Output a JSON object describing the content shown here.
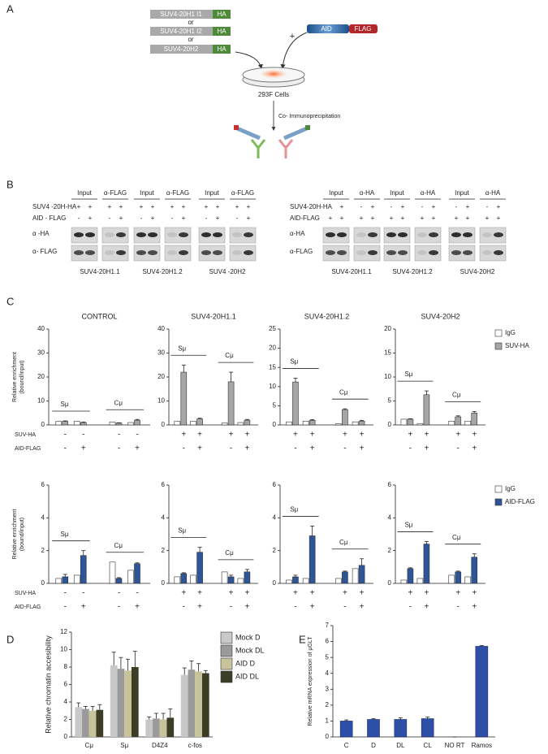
{
  "panel_labels": [
    "A",
    "B",
    "C",
    "D",
    "E"
  ],
  "panel_a": {
    "constructs": [
      {
        "name": "SUV4-20H1 I1",
        "tag": "HA"
      },
      {
        "name": "SUV4-20H1 I2",
        "tag": "HA"
      },
      {
        "name": "SUV4-20H2",
        "tag": "HA"
      }
    ],
    "or": [
      "or",
      "or"
    ],
    "plus": "+",
    "aid": "AID",
    "flag": "FLAG",
    "cells": "293F Cells",
    "step": "Co- Immunoprecipitation"
  },
  "panel_b": [
    {
      "headers": [
        "Input",
        "α-FLAG"
      ],
      "row_labels": [
        "SUV4 -20H-HA",
        "AID - FLAG",
        "α -HA",
        "α- FLAG"
      ],
      "signs": [
        [
          "+",
          "+",
          "+",
          "+"
        ],
        [
          "-",
          "+",
          "-",
          "+"
        ]
      ],
      "groups": [
        "SUV4-20H1.1",
        "SUV4-20H1.2",
        "SUV4 -20H2"
      ]
    },
    {
      "headers": [
        "Input",
        "α-HA"
      ],
      "row_labels": [
        "SUV4-20H-HA",
        "AID-FLAG",
        "α-HA",
        "α-FLAG"
      ],
      "signs": [
        [
          "-",
          "+",
          "-",
          "+"
        ],
        [
          "+",
          "+",
          "+",
          "+"
        ]
      ],
      "groups": [
        "SUV4-20H1.1",
        "SUV4-20H1.2",
        "SUV4-20H2"
      ]
    }
  ],
  "chart_data": [
    {
      "type": "bar",
      "title": "CONTROL",
      "ylabel": [
        "Relative enrichment",
        "(bound/input)"
      ],
      "row_names": [
        "SUV-HA",
        "AID-FLAG"
      ],
      "ylim": [
        0,
        40
      ],
      "yticks": [
        0,
        10,
        20,
        30,
        40
      ],
      "groups": [
        "Sμ",
        "Cμ"
      ],
      "signs": [
        [
          "-",
          "-",
          "-",
          "-"
        ],
        [
          "-",
          "+",
          "-",
          "+"
        ]
      ],
      "series": [
        {
          "color": "#ffffff",
          "values": [
            1.5,
            1.5,
            1.2,
            1.0
          ]
        },
        {
          "color": "#a6a6a6",
          "values": [
            1.5,
            1.0,
            0.8,
            2.0
          ],
          "errors": [
            0.2,
            0.2,
            0.1,
            0.3
          ]
        }
      ]
    },
    {
      "type": "bar",
      "title": "SUV4-20H1.1",
      "ylim": [
        0,
        40
      ],
      "yticks": [
        0,
        10,
        20,
        30,
        40
      ],
      "groups": [
        "Sμ",
        "Cμ"
      ],
      "signs": [
        [
          "+",
          "+",
          "+",
          "+"
        ],
        [
          "-",
          "+",
          "-",
          "+"
        ]
      ],
      "series": [
        {
          "color": "#ffffff",
          "values": [
            1.5,
            1.5,
            0.8,
            1.0
          ]
        },
        {
          "color": "#a6a6a6",
          "values": [
            22,
            2.5,
            18,
            2.0
          ],
          "errors": [
            3,
            0.3,
            4,
            0.3
          ]
        }
      ]
    },
    {
      "type": "bar",
      "title": "SUV4-20H1.2",
      "ylim": [
        0,
        25
      ],
      "yticks": [
        0,
        5,
        10,
        15,
        20,
        25
      ],
      "groups": [
        "Sμ",
        "Cμ"
      ],
      "signs": [
        [
          "+",
          "+",
          "+",
          "+"
        ],
        [
          "-",
          "+",
          "-",
          "+"
        ]
      ],
      "series": [
        {
          "color": "#ffffff",
          "values": [
            0.8,
            1.0,
            0.3,
            0.8
          ]
        },
        {
          "color": "#a6a6a6",
          "values": [
            11.2,
            1.2,
            4.0,
            1.0
          ],
          "errors": [
            1,
            0.2,
            0.2,
            0.2
          ]
        }
      ]
    },
    {
      "type": "bar",
      "title": "SUV4-20H2",
      "ylim": [
        0,
        20
      ],
      "yticks": [
        0,
        5,
        10,
        15,
        20
      ],
      "groups": [
        "Sμ",
        "Cμ"
      ],
      "signs": [
        [
          "+",
          "+",
          "+",
          "+"
        ],
        [
          "-",
          "+",
          "-",
          "+"
        ]
      ],
      "legend": "right",
      "series": [
        {
          "name": "IgG",
          "color": "#ffffff",
          "values": [
            1.2,
            0.3,
            0.8,
            0.8
          ]
        },
        {
          "name": "SUV-HA",
          "color": "#a6a6a6",
          "values": [
            1.2,
            6.3,
            1.7,
            2.5
          ],
          "errors": [
            0.1,
            0.8,
            0.2,
            0.3
          ]
        }
      ]
    },
    {
      "type": "bar",
      "ylabel": [
        "Relative enrichment",
        "(bound/input)"
      ],
      "row_names": [
        "SUV-HA",
        "AID-FLAG"
      ],
      "ylim": [
        0,
        6
      ],
      "yticks": [
        0,
        2,
        4,
        6
      ],
      "groups": [
        "Sμ",
        "Cμ"
      ],
      "signs": [
        [
          "-",
          "-",
          "-",
          "-"
        ],
        [
          "-",
          "+",
          "-",
          "+"
        ]
      ],
      "series": [
        {
          "color": "#ffffff",
          "values": [
            0.3,
            0.5,
            1.3,
            0.8
          ]
        },
        {
          "color": "#2e5597",
          "values": [
            0.4,
            1.7,
            0.3,
            1.2
          ],
          "errors": [
            0.15,
            0.3,
            0.05,
            0.05
          ]
        }
      ]
    },
    {
      "type": "bar",
      "ylim": [
        0,
        6
      ],
      "yticks": [
        0,
        2,
        4,
        6
      ],
      "groups": [
        "Sμ",
        "Cμ"
      ],
      "signs": [
        [
          "+",
          "+",
          "+",
          "+"
        ],
        [
          "-",
          "+",
          "-",
          "+"
        ]
      ],
      "series": [
        {
          "color": "#ffffff",
          "values": [
            0.4,
            0.5,
            0.7,
            0.3
          ]
        },
        {
          "color": "#2e5597",
          "values": [
            0.6,
            1.9,
            0.4,
            0.7
          ],
          "errors": [
            0.05,
            0.3,
            0.1,
            0.15
          ]
        }
      ]
    },
    {
      "type": "bar",
      "ylim": [
        0,
        6
      ],
      "yticks": [
        0,
        2,
        4,
        6
      ],
      "groups": [
        "Sμ",
        "Cμ"
      ],
      "signs": [
        [
          "+",
          "+",
          "+",
          "+"
        ],
        [
          "-",
          "+",
          "-",
          "+"
        ]
      ],
      "series": [
        {
          "color": "#ffffff",
          "values": [
            0.2,
            0.3,
            0.3,
            0.9
          ]
        },
        {
          "color": "#2e5597",
          "values": [
            0.4,
            2.9,
            0.7,
            1.1
          ],
          "errors": [
            0.1,
            0.6,
            0.05,
            0.4
          ]
        }
      ]
    },
    {
      "type": "bar",
      "ylim": [
        0,
        6
      ],
      "yticks": [
        0,
        2,
        4,
        6
      ],
      "groups": [
        "Sμ",
        "Cμ"
      ],
      "signs": [
        [
          "+",
          "+",
          "+",
          "+"
        ],
        [
          "-",
          "+",
          "-",
          "+"
        ]
      ],
      "legend": "right",
      "series": [
        {
          "name": "IgG",
          "color": "#ffffff",
          "values": [
            0.2,
            0.3,
            0.5,
            0.4
          ]
        },
        {
          "name": "AID-FLAG",
          "color": "#2e5597",
          "values": [
            0.9,
            2.4,
            0.7,
            1.6
          ],
          "errors": [
            0.05,
            0.15,
            0.05,
            0.2
          ]
        }
      ]
    },
    {
      "type": "bar",
      "ylabel": "Relative chromatin accesibility",
      "categories": [
        "Cμ",
        "Sμ",
        "D4Z4",
        "c-fos"
      ],
      "ylim": [
        0,
        12
      ],
      "yticks": [
        0,
        2,
        4,
        6,
        8,
        10,
        12
      ],
      "legend": "right",
      "series": [
        {
          "name": "Mock  D",
          "color": "#c8c8c8",
          "values": [
            3.4,
            8.2,
            2.0,
            7.1
          ],
          "errors": [
            0.5,
            1.5,
            0.3,
            0.8
          ]
        },
        {
          "name": "Mock  DL",
          "color": "#9a9a9a",
          "values": [
            3.2,
            7.8,
            2.1,
            7.7
          ],
          "errors": [
            0.3,
            1.3,
            0.6,
            1.0
          ]
        },
        {
          "name": "AID D",
          "color": "#c9c39c",
          "values": [
            3.0,
            7.6,
            2.0,
            7.5
          ],
          "errors": [
            0.5,
            1.3,
            0.7,
            0.9
          ]
        },
        {
          "name": "AID DL",
          "color": "#3b3d26",
          "values": [
            3.1,
            8.0,
            2.2,
            7.3
          ],
          "errors": [
            0.6,
            1.8,
            1.0,
            0.3
          ]
        }
      ]
    },
    {
      "type": "bar",
      "ylabel": "Relative mRNA expression of µGLT",
      "categories": [
        "C",
        "D",
        "DL",
        "CL",
        "NO RT",
        "Ramos"
      ],
      "ylim": [
        0,
        7
      ],
      "yticks": [
        0,
        1,
        2,
        3,
        4,
        5,
        6,
        7
      ],
      "color": "#2e4fa8",
      "values": [
        1.0,
        1.1,
        1.1,
        1.15,
        0,
        5.7
      ],
      "errors": [
        0.07,
        0.05,
        0.1,
        0.1,
        0,
        0.05
      ]
    }
  ]
}
